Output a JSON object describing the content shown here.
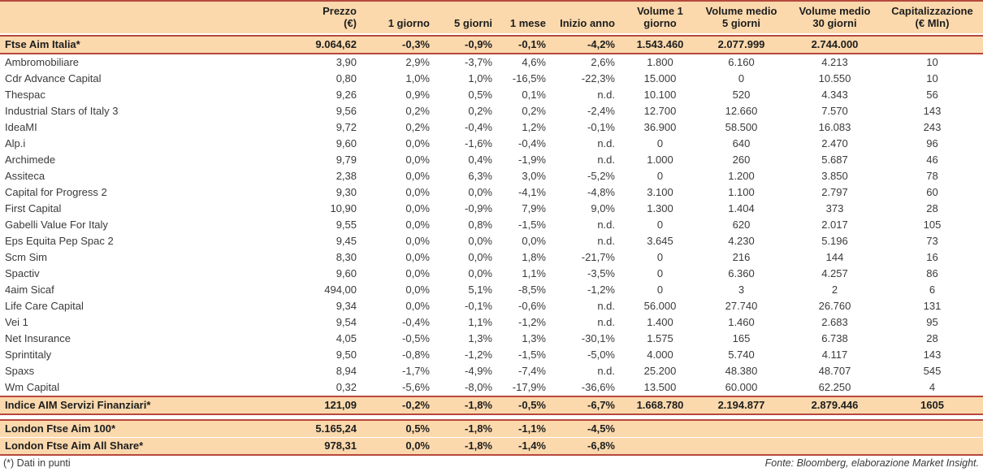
{
  "style": {
    "highlight_bg": "#fbd9ad",
    "accent_border": "#b7483b",
    "text_color": "#3a3a3a"
  },
  "chart_data": {
    "type": "table",
    "columns": [
      {
        "key": "name",
        "label": "",
        "sub": "",
        "align": "left"
      },
      {
        "key": "prezzo",
        "label": "Prezzo",
        "sub": "(€)",
        "align": "right"
      },
      {
        "key": "g1",
        "label": "1 giorno",
        "sub": "",
        "align": "right"
      },
      {
        "key": "g5",
        "label": "5 giorni",
        "sub": "",
        "align": "right"
      },
      {
        "key": "m1",
        "label": "1 mese",
        "sub": "",
        "align": "right"
      },
      {
        "key": "ytd",
        "label": "Inizio anno",
        "sub": "",
        "align": "right"
      },
      {
        "key": "vol1",
        "label": "Volume 1",
        "sub": "giorno",
        "align": "center"
      },
      {
        "key": "volm5",
        "label": "Volume medio",
        "sub": "5 giorni",
        "align": "center"
      },
      {
        "key": "volm30",
        "label": "Volume medio",
        "sub": "30 giorni",
        "align": "center"
      },
      {
        "key": "cap",
        "label": "Capitalizzazione",
        "sub": "(€ Mln)",
        "align": "center"
      }
    ],
    "rows": [
      {
        "variant": "gap",
        "cells": []
      },
      {
        "variant": "index",
        "cells": [
          "Ftse Aim Italia*",
          "9.064,62",
          "-0,3%",
          "-0,9%",
          "-0,1%",
          "-4,2%",
          "1.543.460",
          "2.077.999",
          "2.744.000",
          ""
        ]
      },
      {
        "variant": "stock",
        "cells": [
          "Ambromobiliare",
          "3,90",
          "2,9%",
          "-3,7%",
          "4,6%",
          "2,6%",
          "1.800",
          "6.160",
          "4.213",
          "10"
        ]
      },
      {
        "variant": "stock",
        "cells": [
          "Cdr Advance Capital",
          "0,80",
          "1,0%",
          "1,0%",
          "-16,5%",
          "-22,3%",
          "15.000",
          "0",
          "10.550",
          "10"
        ]
      },
      {
        "variant": "stock",
        "cells": [
          "Thespac",
          "9,26",
          "0,9%",
          "0,5%",
          "0,1%",
          "n.d.",
          "10.100",
          "520",
          "4.343",
          "56"
        ]
      },
      {
        "variant": "stock",
        "cells": [
          "Industrial Stars of Italy 3",
          "9,56",
          "0,2%",
          "0,2%",
          "0,2%",
          "-2,4%",
          "12.700",
          "12.660",
          "7.570",
          "143"
        ]
      },
      {
        "variant": "stock",
        "cells": [
          "IdeaMI",
          "9,72",
          "0,2%",
          "-0,4%",
          "1,2%",
          "-0,1%",
          "36.900",
          "58.500",
          "16.083",
          "243"
        ]
      },
      {
        "variant": "stock",
        "cells": [
          "Alp.i",
          "9,60",
          "0,0%",
          "-1,6%",
          "-0,4%",
          "n.d.",
          "0",
          "640",
          "2.470",
          "96"
        ]
      },
      {
        "variant": "stock",
        "cells": [
          "Archimede",
          "9,79",
          "0,0%",
          "0,4%",
          "-1,9%",
          "n.d.",
          "1.000",
          "260",
          "5.687",
          "46"
        ]
      },
      {
        "variant": "stock",
        "cells": [
          "Assiteca",
          "2,38",
          "0,0%",
          "6,3%",
          "3,0%",
          "-5,2%",
          "0",
          "1.200",
          "3.850",
          "78"
        ]
      },
      {
        "variant": "stock",
        "cells": [
          "Capital for Progress 2",
          "9,30",
          "0,0%",
          "0,0%",
          "-4,1%",
          "-4,8%",
          "3.100",
          "1.100",
          "2.797",
          "60"
        ]
      },
      {
        "variant": "stock",
        "cells": [
          "First Capital",
          "10,90",
          "0,0%",
          "-0,9%",
          "7,9%",
          "9,0%",
          "1.300",
          "1.404",
          "373",
          "28"
        ]
      },
      {
        "variant": "stock",
        "cells": [
          "Gabelli Value For Italy",
          "9,55",
          "0,0%",
          "0,8%",
          "-1,5%",
          "n.d.",
          "0",
          "620",
          "2.017",
          "105"
        ]
      },
      {
        "variant": "stock",
        "cells": [
          "Eps Equita Pep Spac 2",
          "9,45",
          "0,0%",
          "0,0%",
          "0,0%",
          "n.d.",
          "3.645",
          "4.230",
          "5.196",
          "73"
        ]
      },
      {
        "variant": "stock",
        "cells": [
          "Scm Sim",
          "8,30",
          "0,0%",
          "0,0%",
          "1,8%",
          "-21,7%",
          "0",
          "216",
          "144",
          "16"
        ]
      },
      {
        "variant": "stock",
        "cells": [
          "Spactiv",
          "9,60",
          "0,0%",
          "0,0%",
          "1,1%",
          "-3,5%",
          "0",
          "6.360",
          "4.257",
          "86"
        ]
      },
      {
        "variant": "stock",
        "cells": [
          "4aim Sicaf",
          "494,00",
          "0,0%",
          "5,1%",
          "-8,5%",
          "-1,2%",
          "0",
          "3",
          "2",
          "6"
        ]
      },
      {
        "variant": "stock",
        "cells": [
          "Life Care Capital",
          "9,34",
          "0,0%",
          "-0,1%",
          "-0,6%",
          "n.d.",
          "56.000",
          "27.740",
          "26.760",
          "131"
        ]
      },
      {
        "variant": "stock",
        "cells": [
          "Vei 1",
          "9,54",
          "-0,4%",
          "1,1%",
          "-1,2%",
          "n.d.",
          "1.400",
          "1.460",
          "2.683",
          "95"
        ]
      },
      {
        "variant": "stock",
        "cells": [
          "Net Insurance",
          "4,05",
          "-0,5%",
          "1,3%",
          "1,3%",
          "-30,1%",
          "1.575",
          "165",
          "6.738",
          "28"
        ]
      },
      {
        "variant": "stock",
        "cells": [
          "Sprintitaly",
          "9,50",
          "-0,8%",
          "-1,2%",
          "-1,5%",
          "-5,0%",
          "4.000",
          "5.740",
          "4.117",
          "143"
        ]
      },
      {
        "variant": "stock",
        "cells": [
          "Spaxs",
          "8,94",
          "-1,7%",
          "-4,9%",
          "-7,4%",
          "n.d.",
          "25.200",
          "48.380",
          "48.707",
          "545"
        ]
      },
      {
        "variant": "stock",
        "cells": [
          "Wm Capital",
          "0,32",
          "-5,6%",
          "-8,0%",
          "-17,9%",
          "-36,6%",
          "13.500",
          "60.000",
          "62.250",
          "4"
        ]
      },
      {
        "variant": "index",
        "cells": [
          "Indice AIM Servizi Finanziari*",
          "121,09",
          "-0,2%",
          "-1,8%",
          "-0,5%",
          "-6,7%",
          "1.668.780",
          "2.194.877",
          "2.879.446",
          "1605"
        ]
      },
      {
        "variant": "spacer",
        "cells": []
      },
      {
        "variant": "london-top",
        "cells": [
          "London Ftse Aim 100*",
          "5.165,24",
          "0,5%",
          "-1,8%",
          "-1,1%",
          "-4,5%",
          "",
          "",
          "",
          ""
        ]
      },
      {
        "variant": "london-bottom",
        "cells": [
          "London Ftse Aim All Share*",
          "978,31",
          "0,0%",
          "-1,8%",
          "-1,4%",
          "-6,8%",
          "",
          "",
          "",
          ""
        ]
      }
    ]
  },
  "footer": {
    "note": "(*) Dati in punti",
    "source": "Fonte: Bloomberg, elaborazione Market Insight."
  }
}
